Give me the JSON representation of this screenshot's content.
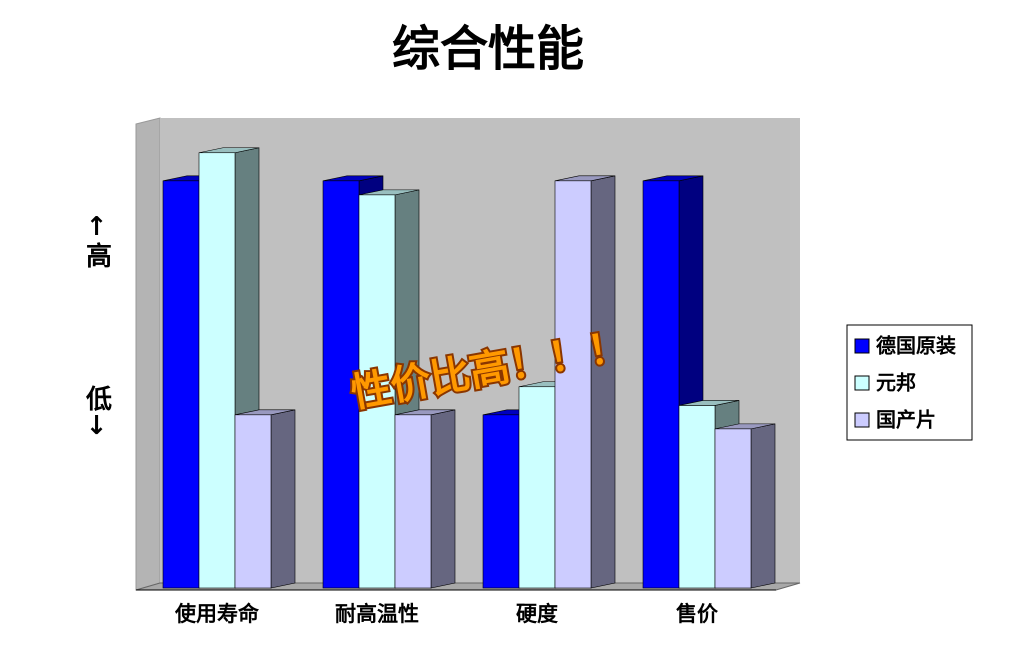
{
  "chart_data": {
    "type": "bar3d",
    "title": "综合性能",
    "y_label_top": "↑高",
    "y_label_bottom": "低↓",
    "annotation": "性价比高！！！",
    "categories": [
      "使用寿命",
      "耐高温性",
      "硬度",
      "售价"
    ],
    "series": [
      {
        "name": "德国原装",
        "color": "#0000ff",
        "values": [
          87,
          87,
          37,
          87
        ]
      },
      {
        "name": "元邦",
        "color": "#ccffff",
        "values": [
          93,
          84,
          43,
          39
        ]
      },
      {
        "name": "国产片",
        "color": "#ccccff",
        "values": [
          37,
          37,
          87,
          34
        ]
      }
    ],
    "ylim": [
      0,
      100
    ],
    "legend": "right"
  }
}
